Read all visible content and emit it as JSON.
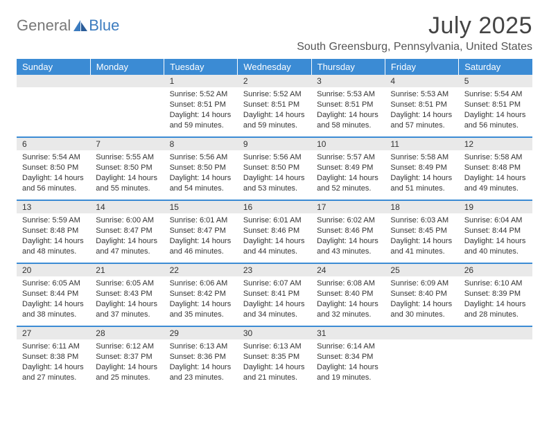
{
  "brand": {
    "part1": "General",
    "part2": "Blue"
  },
  "title": "July 2025",
  "location": "South Greensburg, Pennsylvania, United States",
  "colors": {
    "header_bg": "#3b8bd4",
    "header_text": "#ffffff",
    "daynum_bg": "#e9e9e9",
    "row_divider": "#3b8bd4",
    "body_text": "#333333"
  },
  "day_headers": [
    "Sunday",
    "Monday",
    "Tuesday",
    "Wednesday",
    "Thursday",
    "Friday",
    "Saturday"
  ],
  "weeks": [
    [
      null,
      null,
      {
        "n": "1",
        "sr": "Sunrise: 5:52 AM",
        "ss": "Sunset: 8:51 PM",
        "d1": "Daylight: 14 hours",
        "d2": "and 59 minutes."
      },
      {
        "n": "2",
        "sr": "Sunrise: 5:52 AM",
        "ss": "Sunset: 8:51 PM",
        "d1": "Daylight: 14 hours",
        "d2": "and 59 minutes."
      },
      {
        "n": "3",
        "sr": "Sunrise: 5:53 AM",
        "ss": "Sunset: 8:51 PM",
        "d1": "Daylight: 14 hours",
        "d2": "and 58 minutes."
      },
      {
        "n": "4",
        "sr": "Sunrise: 5:53 AM",
        "ss": "Sunset: 8:51 PM",
        "d1": "Daylight: 14 hours",
        "d2": "and 57 minutes."
      },
      {
        "n": "5",
        "sr": "Sunrise: 5:54 AM",
        "ss": "Sunset: 8:51 PM",
        "d1": "Daylight: 14 hours",
        "d2": "and 56 minutes."
      }
    ],
    [
      {
        "n": "6",
        "sr": "Sunrise: 5:54 AM",
        "ss": "Sunset: 8:50 PM",
        "d1": "Daylight: 14 hours",
        "d2": "and 56 minutes."
      },
      {
        "n": "7",
        "sr": "Sunrise: 5:55 AM",
        "ss": "Sunset: 8:50 PM",
        "d1": "Daylight: 14 hours",
        "d2": "and 55 minutes."
      },
      {
        "n": "8",
        "sr": "Sunrise: 5:56 AM",
        "ss": "Sunset: 8:50 PM",
        "d1": "Daylight: 14 hours",
        "d2": "and 54 minutes."
      },
      {
        "n": "9",
        "sr": "Sunrise: 5:56 AM",
        "ss": "Sunset: 8:50 PM",
        "d1": "Daylight: 14 hours",
        "d2": "and 53 minutes."
      },
      {
        "n": "10",
        "sr": "Sunrise: 5:57 AM",
        "ss": "Sunset: 8:49 PM",
        "d1": "Daylight: 14 hours",
        "d2": "and 52 minutes."
      },
      {
        "n": "11",
        "sr": "Sunrise: 5:58 AM",
        "ss": "Sunset: 8:49 PM",
        "d1": "Daylight: 14 hours",
        "d2": "and 51 minutes."
      },
      {
        "n": "12",
        "sr": "Sunrise: 5:58 AM",
        "ss": "Sunset: 8:48 PM",
        "d1": "Daylight: 14 hours",
        "d2": "and 49 minutes."
      }
    ],
    [
      {
        "n": "13",
        "sr": "Sunrise: 5:59 AM",
        "ss": "Sunset: 8:48 PM",
        "d1": "Daylight: 14 hours",
        "d2": "and 48 minutes."
      },
      {
        "n": "14",
        "sr": "Sunrise: 6:00 AM",
        "ss": "Sunset: 8:47 PM",
        "d1": "Daylight: 14 hours",
        "d2": "and 47 minutes."
      },
      {
        "n": "15",
        "sr": "Sunrise: 6:01 AM",
        "ss": "Sunset: 8:47 PM",
        "d1": "Daylight: 14 hours",
        "d2": "and 46 minutes."
      },
      {
        "n": "16",
        "sr": "Sunrise: 6:01 AM",
        "ss": "Sunset: 8:46 PM",
        "d1": "Daylight: 14 hours",
        "d2": "and 44 minutes."
      },
      {
        "n": "17",
        "sr": "Sunrise: 6:02 AM",
        "ss": "Sunset: 8:46 PM",
        "d1": "Daylight: 14 hours",
        "d2": "and 43 minutes."
      },
      {
        "n": "18",
        "sr": "Sunrise: 6:03 AM",
        "ss": "Sunset: 8:45 PM",
        "d1": "Daylight: 14 hours",
        "d2": "and 41 minutes."
      },
      {
        "n": "19",
        "sr": "Sunrise: 6:04 AM",
        "ss": "Sunset: 8:44 PM",
        "d1": "Daylight: 14 hours",
        "d2": "and 40 minutes."
      }
    ],
    [
      {
        "n": "20",
        "sr": "Sunrise: 6:05 AM",
        "ss": "Sunset: 8:44 PM",
        "d1": "Daylight: 14 hours",
        "d2": "and 38 minutes."
      },
      {
        "n": "21",
        "sr": "Sunrise: 6:05 AM",
        "ss": "Sunset: 8:43 PM",
        "d1": "Daylight: 14 hours",
        "d2": "and 37 minutes."
      },
      {
        "n": "22",
        "sr": "Sunrise: 6:06 AM",
        "ss": "Sunset: 8:42 PM",
        "d1": "Daylight: 14 hours",
        "d2": "and 35 minutes."
      },
      {
        "n": "23",
        "sr": "Sunrise: 6:07 AM",
        "ss": "Sunset: 8:41 PM",
        "d1": "Daylight: 14 hours",
        "d2": "and 34 minutes."
      },
      {
        "n": "24",
        "sr": "Sunrise: 6:08 AM",
        "ss": "Sunset: 8:40 PM",
        "d1": "Daylight: 14 hours",
        "d2": "and 32 minutes."
      },
      {
        "n": "25",
        "sr": "Sunrise: 6:09 AM",
        "ss": "Sunset: 8:40 PM",
        "d1": "Daylight: 14 hours",
        "d2": "and 30 minutes."
      },
      {
        "n": "26",
        "sr": "Sunrise: 6:10 AM",
        "ss": "Sunset: 8:39 PM",
        "d1": "Daylight: 14 hours",
        "d2": "and 28 minutes."
      }
    ],
    [
      {
        "n": "27",
        "sr": "Sunrise: 6:11 AM",
        "ss": "Sunset: 8:38 PM",
        "d1": "Daylight: 14 hours",
        "d2": "and 27 minutes."
      },
      {
        "n": "28",
        "sr": "Sunrise: 6:12 AM",
        "ss": "Sunset: 8:37 PM",
        "d1": "Daylight: 14 hours",
        "d2": "and 25 minutes."
      },
      {
        "n": "29",
        "sr": "Sunrise: 6:13 AM",
        "ss": "Sunset: 8:36 PM",
        "d1": "Daylight: 14 hours",
        "d2": "and 23 minutes."
      },
      {
        "n": "30",
        "sr": "Sunrise: 6:13 AM",
        "ss": "Sunset: 8:35 PM",
        "d1": "Daylight: 14 hours",
        "d2": "and 21 minutes."
      },
      {
        "n": "31",
        "sr": "Sunrise: 6:14 AM",
        "ss": "Sunset: 8:34 PM",
        "d1": "Daylight: 14 hours",
        "d2": "and 19 minutes."
      },
      null,
      null
    ]
  ]
}
